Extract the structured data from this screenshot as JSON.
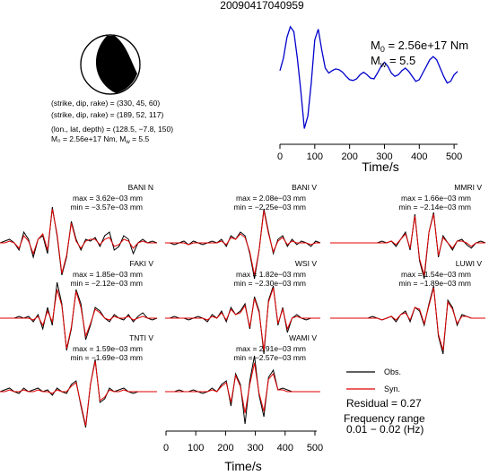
{
  "title": "20090417040959",
  "mechanism": {
    "lines": [
      "(strike, dip, rake) = (330, 45, 60)",
      "(strike, dip, rake) = (189, 52, 117)",
      "(lon., lat, depth) = (128.5, −7.8, 150)"
    ],
    "moment_line": "M₀ = 2.56e+17 Nm, M",
    "moment_line_sub": "w",
    "moment_line_tail": " = 5.5",
    "colors": {
      "compression": "#000000",
      "dilatation": "#ffffff"
    }
  },
  "stf": {
    "m0_label": "M",
    "m0_sub": "0",
    "m0_value": " = 2.56e+17 Nm",
    "mw_label": "M",
    "mw_sub": "w",
    "mw_value": " = 5.5",
    "color": "#0000cc",
    "xlabel": "Time/s",
    "xticks": [
      "0",
      "100",
      "200",
      "300",
      "400",
      "500"
    ]
  },
  "legend": {
    "obs": "Obs.",
    "syn": "Syn.",
    "obs_color": "#000000",
    "syn_color": "#e00000",
    "residual": "Residual = 0.27",
    "freq_title": "Frequency range",
    "freq_value": "0.01 − 0.02 (Hz)"
  },
  "bottom_axis": {
    "xlabel": "Time/s",
    "xticks": [
      "0",
      "100",
      "200",
      "300",
      "400",
      "500"
    ]
  },
  "chart_data": [
    {
      "type": "line",
      "name": "source-time-function",
      "x": [
        0,
        10,
        20,
        30,
        40,
        50,
        60,
        70,
        80,
        90,
        100,
        110,
        120,
        130,
        140,
        150,
        160,
        170,
        180,
        190,
        200,
        210,
        220,
        230,
        240,
        250,
        260,
        270,
        280,
        290,
        300,
        310,
        320,
        330,
        340,
        350,
        360,
        370,
        380,
        390,
        400,
        410,
        420,
        430,
        440,
        450,
        460,
        470,
        480,
        490,
        500,
        510
      ],
      "y": [
        0.45,
        0.6,
        0.85,
        0.98,
        0.92,
        0.6,
        0.2,
        -0.25,
        -0.1,
        0.3,
        0.82,
        0.95,
        0.7,
        0.48,
        0.42,
        0.45,
        0.47,
        0.46,
        0.43,
        0.38,
        0.34,
        0.33,
        0.35,
        0.4,
        0.43,
        0.4,
        0.36,
        0.35,
        0.42,
        0.5,
        0.55,
        0.5,
        0.42,
        0.38,
        0.4,
        0.45,
        0.48,
        0.44,
        0.38,
        0.32,
        0.34,
        0.42,
        0.5,
        0.58,
        0.62,
        0.58,
        0.48,
        0.38,
        0.3,
        0.32,
        0.4,
        0.44
      ],
      "xlim": [
        0,
        510
      ],
      "xlabel": "Time/s"
    },
    {
      "type": "line",
      "station": "BANI N",
      "max": "max = 3.62e−03 mm",
      "min": "min = −3.57e−03 mm",
      "obs": [
        0,
        0.05,
        0.1,
        0,
        -0.2,
        0.3,
        0.1,
        -0.4,
        0.1,
        0.2,
        -0.3,
        1.0,
        0.2,
        -0.9,
        -0.4,
        0.6,
        0.1,
        -0.2,
        0.1,
        0.05,
        0.15,
        -0.1,
        0.2,
        0.3,
        -0.2,
        -0.1,
        0.2,
        0.1,
        -0.3,
        0,
        0.1,
        0,
        0.05,
        0
      ],
      "syn": [
        0,
        0,
        0.05,
        0,
        -0.15,
        0.2,
        0.05,
        -0.3,
        0.1,
        0.25,
        -0.2,
        0.95,
        0.25,
        -0.85,
        -0.35,
        0.55,
        0.05,
        -0.15,
        0.05,
        0.1,
        0.1,
        -0.05,
        0.1,
        0.15,
        -0.1,
        -0.05,
        0.1,
        0.05,
        -0.15,
        0,
        0.05,
        0,
        0,
        0
      ]
    },
    {
      "type": "line",
      "station": "BANI V",
      "max": "max = 2.08e−03 mm",
      "min": "min = −2.25e−03 mm",
      "obs": [
        0,
        0,
        -0.05,
        0,
        0.05,
        -0.05,
        0.05,
        0,
        -0.05,
        0,
        0.05,
        0,
        0.1,
        -0.1,
        0.2,
        0.1,
        0.3,
        0.2,
        -0.3,
        -1.0,
        -0.2,
        0.95,
        0.3,
        -0.3,
        0.1,
        0.2,
        -0.1,
        0.1,
        -0.05,
        0.05,
        0,
        -0.1,
        0.05,
        0
      ],
      "syn": [
        0,
        0,
        0,
        0,
        0,
        -0.05,
        0,
        0,
        0,
        0,
        0,
        0,
        0.05,
        -0.05,
        0.15,
        0.1,
        0.25,
        0.15,
        -0.25,
        -0.9,
        -0.2,
        0.9,
        0.25,
        -0.25,
        0.05,
        0.15,
        -0.05,
        0.05,
        0,
        0,
        0,
        -0.05,
        0,
        0
      ]
    },
    {
      "type": "line",
      "station": "MMRI V",
      "max": "max = 1.66e−03 mm",
      "min": "min = −2.14e−03 mm",
      "obs": [
        0,
        0,
        0,
        0,
        0,
        0,
        0,
        0,
        0,
        0,
        0,
        0.05,
        0,
        0.05,
        -0.1,
        0.1,
        0.3,
        -0.2,
        0.8,
        -0.5,
        -1.0,
        0.3,
        0.85,
        -0.4,
        0.2,
        0,
        -0.2,
        0.05,
        0.1,
        -0.05,
        -0.15,
        0,
        0.05,
        0
      ],
      "syn": [
        0,
        0,
        0,
        0,
        0,
        0,
        0,
        0,
        0,
        0,
        0,
        0,
        0,
        0.05,
        -0.05,
        0.1,
        0.25,
        -0.15,
        0.75,
        -0.45,
        -0.9,
        0.3,
        0.8,
        -0.35,
        0.15,
        0,
        -0.15,
        0.05,
        0.05,
        0,
        -0.1,
        0,
        0,
        0
      ]
    },
    {
      "type": "line",
      "station": "FAKI V",
      "max": "max = 1.85e−03 mm",
      "min": "min = −2.12e−03 mm",
      "obs": [
        0,
        0,
        0,
        0,
        0.05,
        0,
        0.05,
        -0.1,
        0.1,
        -0.3,
        0.3,
        -0.2,
        1.0,
        0.4,
        -0.9,
        -0.3,
        0.8,
        0.4,
        -0.6,
        -0.2,
        0.3,
        0.2,
        0,
        -0.1,
        0.1,
        0,
        -0.05,
        0.1,
        -0.1,
        0.05,
        0.15,
        0,
        -0.05,
        0
      ],
      "syn": [
        0,
        0,
        0,
        0,
        0,
        0,
        0,
        -0.05,
        0.05,
        -0.2,
        0.2,
        -0.1,
        0.8,
        0.35,
        -0.85,
        -0.25,
        0.75,
        0.3,
        -0.5,
        -0.15,
        0.25,
        0.15,
        0,
        -0.05,
        0.05,
        0,
        0,
        0.05,
        -0.05,
        0,
        0.05,
        0,
        0,
        0
      ]
    },
    {
      "type": "line",
      "station": "WSI V",
      "max": "max = 1.82e−03 mm",
      "min": "min = −2.30e−03 mm",
      "obs": [
        0,
        0,
        0.05,
        0,
        0,
        -0.05,
        0,
        0.05,
        0,
        -0.1,
        0.1,
        0,
        0.2,
        -0.1,
        0.3,
        0.1,
        0.2,
        0.4,
        -0.3,
        0.6,
        0.2,
        -1.0,
        0.5,
        0.9,
        -0.2,
        0.3,
        -0.4,
        0,
        0.1,
        0,
        -0.05,
        0,
        0,
        0
      ],
      "syn": [
        0,
        0,
        0,
        0,
        0,
        0,
        0,
        0,
        0,
        -0.05,
        0.05,
        0,
        0.15,
        -0.05,
        0.25,
        0.1,
        0.15,
        0.35,
        -0.25,
        0.55,
        0.15,
        -0.9,
        0.45,
        0.85,
        -0.15,
        0.25,
        -0.3,
        0,
        0.05,
        0,
        0,
        0,
        0,
        0
      ]
    },
    {
      "type": "line",
      "station": "LUWI V",
      "max": "max = 1.54e−03 mm",
      "min": "min = −1.89e−03 mm",
      "obs": [
        0,
        0,
        0,
        0,
        0,
        0,
        0,
        0,
        0,
        0.05,
        0,
        -0.05,
        0,
        0.05,
        -0.1,
        0.1,
        0.2,
        -0.1,
        0.3,
        0.2,
        -0.2,
        0.4,
        0.9,
        -0.5,
        -1.0,
        0.5,
        0.3,
        -0.2,
        0.1,
        0.05,
        0,
        0,
        0,
        0
      ],
      "syn": [
        0,
        0,
        0,
        0,
        0,
        0,
        0,
        0,
        0,
        0,
        0,
        -0.05,
        0,
        0.05,
        -0.05,
        0.1,
        0.15,
        -0.05,
        0.3,
        0.25,
        -0.15,
        0.35,
        0.85,
        -0.45,
        -0.9,
        0.45,
        0.25,
        -0.15,
        0.05,
        0.05,
        0,
        0,
        0,
        0
      ]
    },
    {
      "type": "line",
      "station": "TNTI V",
      "max": "max = 1.59e−03 mm",
      "min": "min = −1.69e−03 mm",
      "obs": [
        0,
        0.05,
        0.1,
        0,
        -0.05,
        0.1,
        0,
        0.05,
        0.1,
        0,
        0.05,
        -0.1,
        0.1,
        0,
        -0.05,
        0.2,
        0.3,
        -0.4,
        -1.0,
        0.2,
        0.9,
        -0.3,
        -0.2,
        0.1,
        0,
        0.05,
        0.1,
        0,
        -0.05,
        0,
        0,
        0,
        0,
        0
      ],
      "syn": [
        0,
        0,
        0.05,
        0,
        0,
        0.05,
        0,
        0,
        0.05,
        0,
        0,
        -0.05,
        0.05,
        0,
        0,
        0.15,
        0.25,
        -0.35,
        -0.95,
        0.2,
        0.85,
        -0.25,
        -0.15,
        0.05,
        0,
        0,
        0.05,
        0,
        0,
        0,
        0,
        0,
        0,
        0
      ]
    },
    {
      "type": "line",
      "station": "WAMI V",
      "max": "max = 2.91e−03 mm",
      "min": "min = −2.57e−03 mm",
      "obs": [
        0,
        0,
        0,
        0.05,
        0,
        0,
        0.05,
        0,
        -0.05,
        0,
        0.1,
        0,
        0.2,
        0.3,
        -0.4,
        0.5,
        0.2,
        -0.9,
        0.3,
        1.0,
        -0.1,
        -0.7,
        0.4,
        0.6,
        0.05,
        0.1,
        0.05,
        0,
        0,
        0,
        0,
        0,
        0,
        0
      ],
      "syn": [
        0,
        0,
        0,
        0,
        0,
        0,
        0,
        0,
        0,
        0,
        0.05,
        0,
        0.15,
        0.25,
        -0.3,
        0.45,
        0.15,
        -0.6,
        0.2,
        0.8,
        -0.05,
        -0.55,
        0.35,
        0.5,
        0.05,
        0.05,
        0,
        0,
        0,
        0,
        0,
        0,
        0,
        0
      ]
    }
  ]
}
